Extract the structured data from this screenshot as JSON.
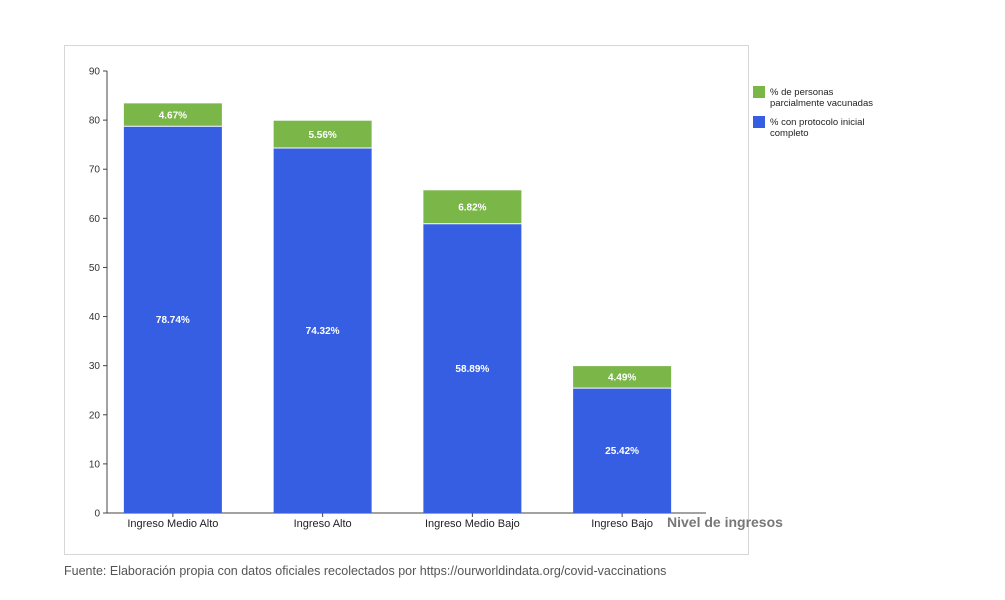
{
  "chart_data": {
    "type": "bar",
    "stacked": true,
    "categories": [
      "Ingreso Medio Alto",
      "Ingreso Alto",
      "Ingreso Medio Bajo",
      "Ingreso Bajo"
    ],
    "series": [
      {
        "name": "% con protocolo inicial completo",
        "values": [
          78.74,
          74.32,
          58.89,
          25.42
        ],
        "labels": [
          "78.74%",
          "74.32%",
          "58.89%",
          "25.42%"
        ],
        "color": "#365ee3"
      },
      {
        "name": "% de personas parcialmente vacunadas",
        "values": [
          4.67,
          5.56,
          6.82,
          4.49
        ],
        "labels": [
          "4.67%",
          "5.56%",
          "6.82%",
          "4.49%"
        ],
        "color": "#7ab648"
      }
    ],
    "legend": [
      {
        "lines": [
          "% de personas",
          "parcialmente vacunadas"
        ],
        "color": "#7ab648"
      },
      {
        "lines": [
          "% con protocolo inicial",
          "completo"
        ],
        "color": "#365ee3"
      }
    ],
    "legend_position": "top-right",
    "xlabel": "Nivel de ingresos",
    "ylabel": "",
    "ylim": [
      0,
      90
    ],
    "yticks": [
      0,
      10,
      20,
      30,
      40,
      50,
      60,
      70,
      80,
      90
    ],
    "grid": false
  },
  "source_note": "Fuente: Elaboración propia con datos oficiales recolectados por https://ourworldindata.org/covid-vaccinations"
}
